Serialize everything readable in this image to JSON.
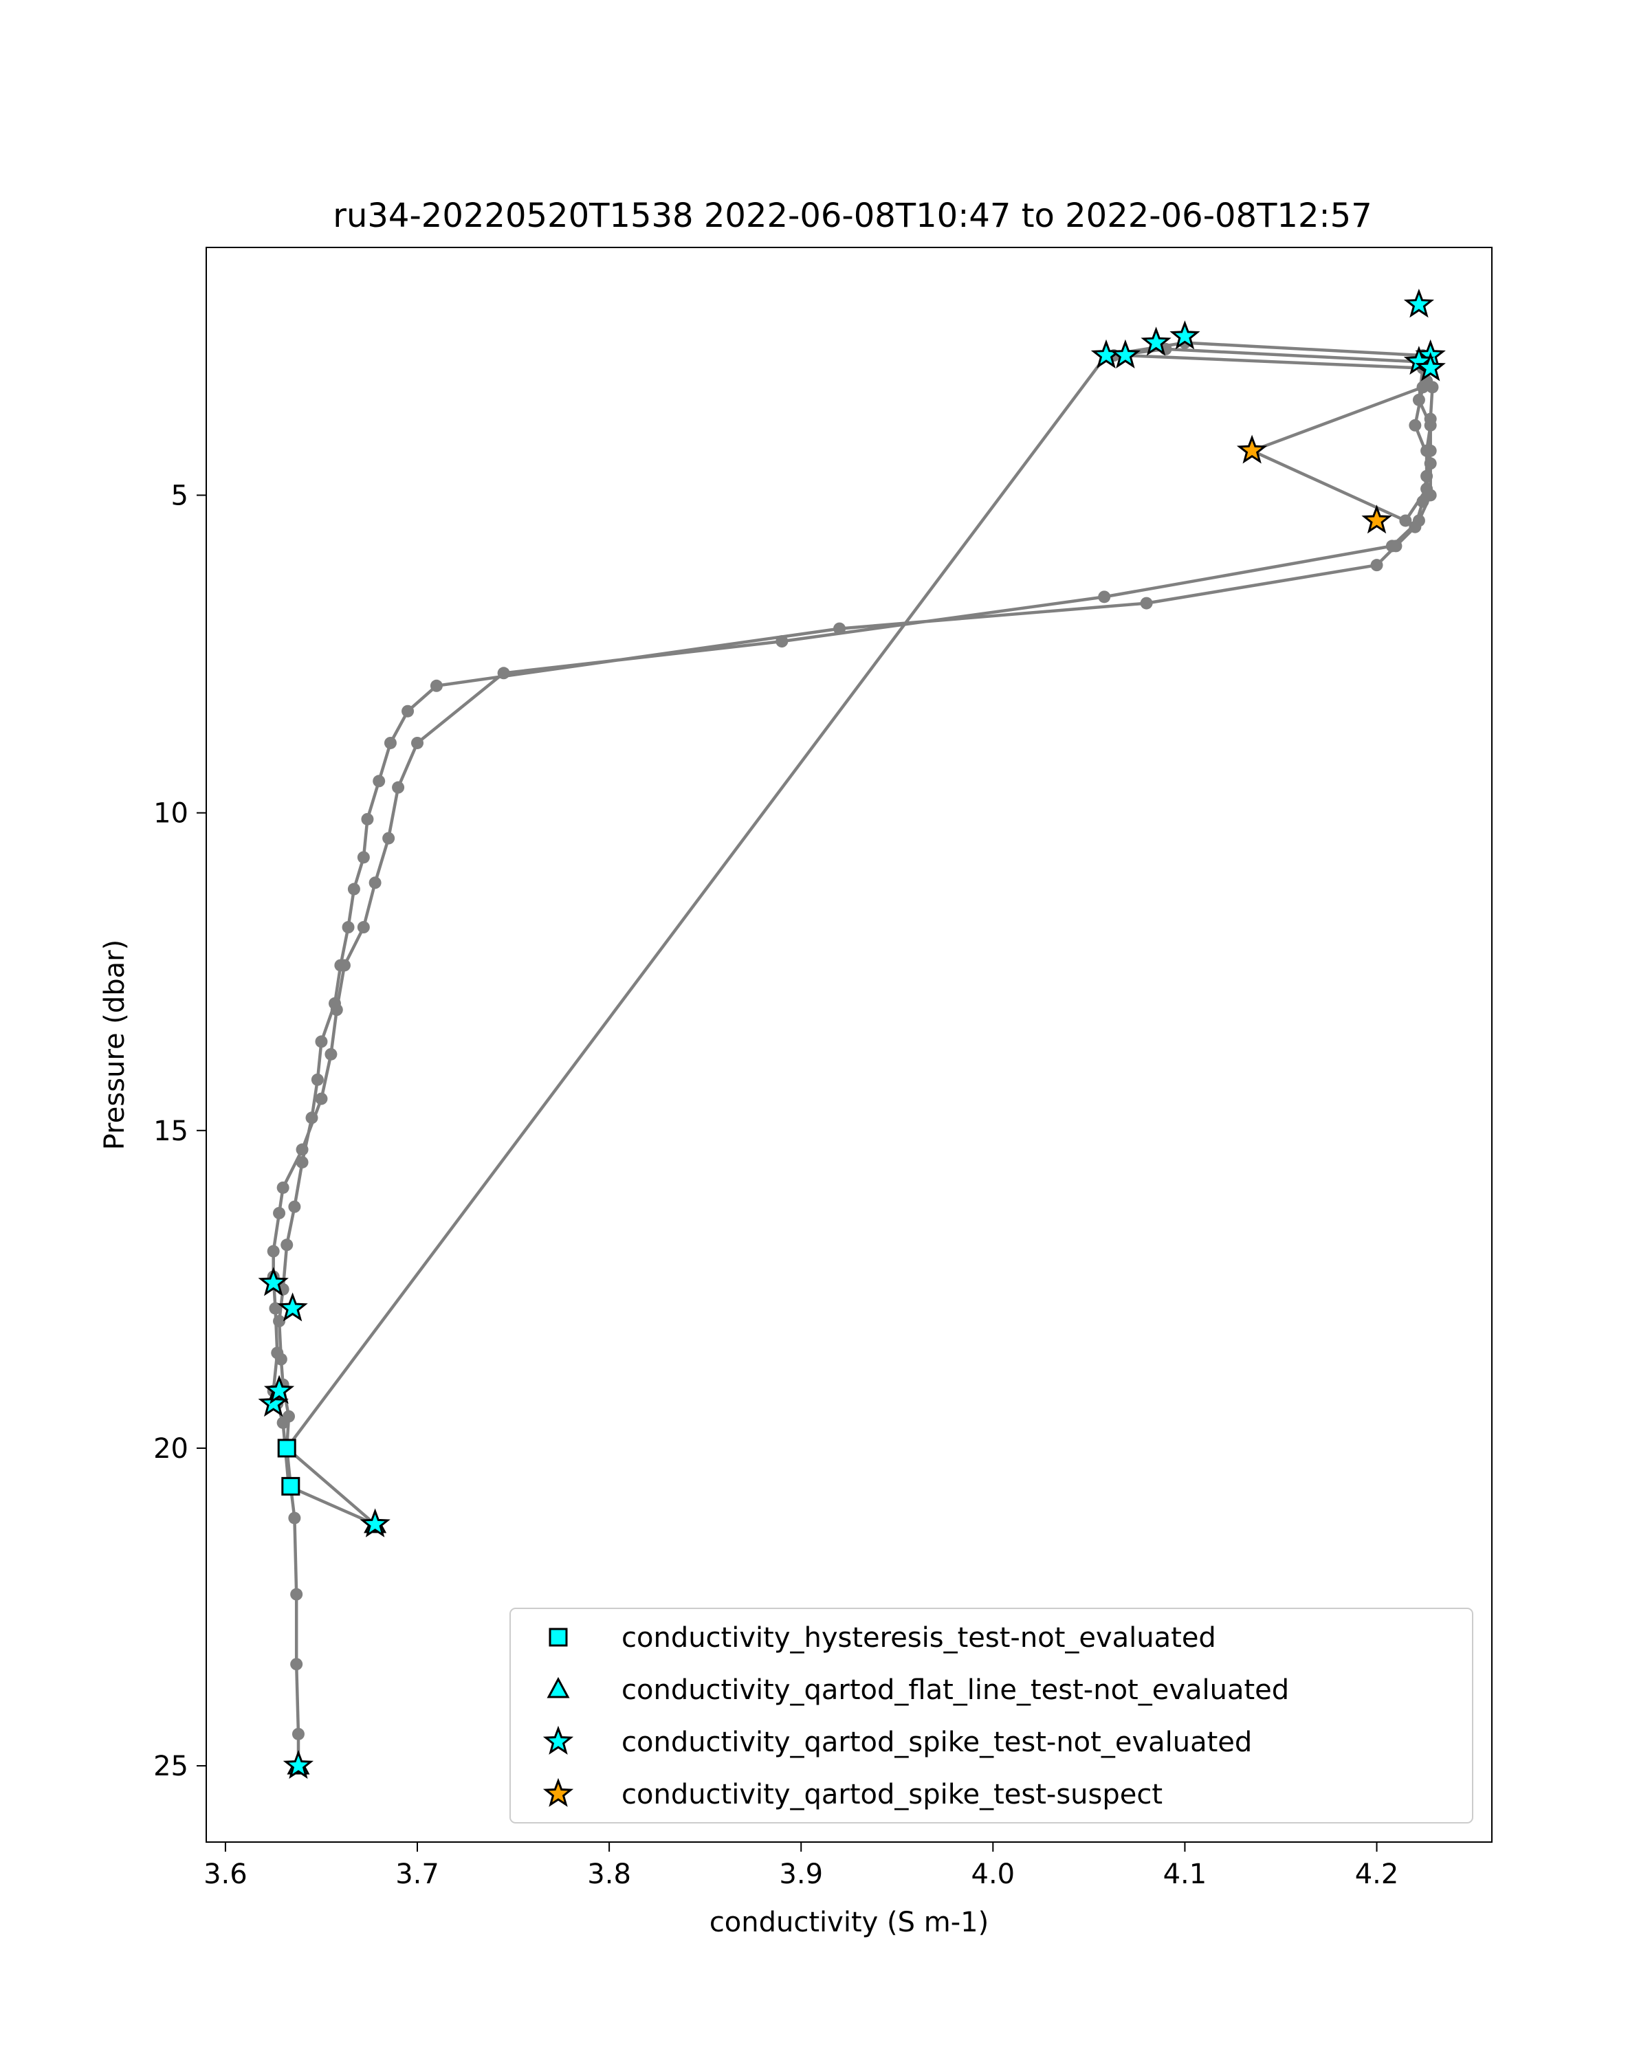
{
  "chart_data": {
    "type": "line",
    "title": "ru34-20220520T1538 2022-06-08T10:47 to 2022-06-08T12:57",
    "xlabel": "conductivity (S m-1)",
    "ylabel": "Pressure (dbar)",
    "xlim": [
      3.59,
      4.26
    ],
    "ylim": [
      26.2,
      1.1
    ],
    "y_inverted": true,
    "xticks": [
      3.6,
      3.7,
      3.8,
      3.9,
      4.0,
      4.1,
      4.2
    ],
    "xtick_labels": [
      "3.6",
      "3.7",
      "3.8",
      "3.9",
      "4.0",
      "4.1",
      "4.2"
    ],
    "yticks": [
      5,
      10,
      15,
      20,
      25
    ],
    "ytick_labels": [
      "5",
      "10",
      "15",
      "20",
      "25"
    ],
    "grid": false,
    "legend_position": "lower-right",
    "line_color": "#808080",
    "series": [
      {
        "x": [
          3.638,
          3.638,
          3.637,
          3.637,
          3.636,
          3.634,
          3.632,
          3.678,
          3.633,
          3.63,
          3.627,
          3.625,
          3.627,
          3.626,
          3.625,
          3.625,
          3.628,
          3.63,
          3.64,
          3.65,
          3.655,
          3.658,
          3.662,
          3.672,
          3.678,
          3.685,
          3.69,
          3.7,
          3.745,
          3.89,
          4.058,
          4.208,
          4.222,
          4.228,
          4.228,
          4.22,
          4.224,
          4.135,
          4.215,
          4.226,
          4.228,
          4.228,
          4.229,
          4.226,
          4.224,
          4.1,
          4.059,
          3.632,
          3.633,
          3.63,
          3.629,
          3.628,
          3.63,
          3.632,
          3.636,
          3.64,
          3.645,
          3.648,
          3.65,
          3.657,
          3.66,
          3.664,
          3.667,
          3.672,
          3.674,
          3.68,
          3.686,
          3.695,
          3.71,
          3.92,
          4.08,
          4.2,
          4.21,
          4.22,
          4.224,
          4.226,
          4.226,
          4.228,
          4.222,
          4.224,
          4.069,
          4.063,
          4.09,
          4.222
        ],
        "y": [
          25.0,
          24.5,
          23.4,
          22.3,
          21.1,
          20.6,
          20.0,
          21.2,
          20.6,
          19.6,
          19.3,
          19.1,
          18.5,
          17.8,
          17.3,
          16.9,
          16.3,
          15.9,
          15.3,
          14.5,
          13.8,
          13.1,
          12.4,
          11.8,
          11.1,
          10.4,
          9.6,
          8.9,
          7.8,
          7.3,
          6.6,
          5.8,
          5.4,
          5.0,
          4.5,
          3.9,
          3.3,
          4.3,
          5.4,
          4.9,
          4.3,
          3.8,
          3.3,
          3.2,
          2.8,
          2.6,
          2.8,
          20.0,
          19.5,
          19.0,
          18.6,
          18.0,
          17.5,
          16.8,
          16.2,
          15.5,
          14.8,
          14.2,
          13.6,
          13.0,
          12.4,
          11.8,
          11.2,
          10.7,
          10.1,
          9.5,
          8.9,
          8.4,
          8.0,
          7.1,
          6.7,
          6.1,
          5.8,
          5.5,
          5.1,
          4.7,
          4.3,
          3.9,
          3.5,
          3.0,
          2.8,
          2.8,
          2.7,
          2.9
        ],
        "flags": [
          {
            "x": 3.632,
            "y": 20.0,
            "flag": "conductivity_hysteresis_test-not_evaluated"
          },
          {
            "x": 3.634,
            "y": 20.6,
            "flag": "conductivity_hysteresis_test-not_evaluated"
          },
          {
            "x": 3.638,
            "y": 25.0,
            "flag": "conductivity_qartod_flat_line_test-not_evaluated"
          },
          {
            "x": 3.678,
            "y": 21.2,
            "flag": "conductivity_qartod_flat_line_test-not_evaluated"
          },
          {
            "x": 3.638,
            "y": 25.0,
            "flag": "conductivity_qartod_spike_test-not_evaluated"
          },
          {
            "x": 3.678,
            "y": 21.2,
            "flag": "conductivity_qartod_spike_test-not_evaluated"
          },
          {
            "x": 3.625,
            "y": 19.3,
            "flag": "conductivity_qartod_spike_test-not_evaluated"
          },
          {
            "x": 3.628,
            "y": 19.1,
            "flag": "conductivity_qartod_spike_test-not_evaluated"
          },
          {
            "x": 3.625,
            "y": 17.4,
            "flag": "conductivity_qartod_spike_test-not_evaluated"
          },
          {
            "x": 3.635,
            "y": 17.8,
            "flag": "conductivity_qartod_spike_test-not_evaluated"
          },
          {
            "x": 4.059,
            "y": 2.8,
            "flag": "conductivity_qartod_spike_test-not_evaluated"
          },
          {
            "x": 4.069,
            "y": 2.8,
            "flag": "conductivity_qartod_spike_test-not_evaluated"
          },
          {
            "x": 4.085,
            "y": 2.6,
            "flag": "conductivity_qartod_spike_test-not_evaluated"
          },
          {
            "x": 4.1,
            "y": 2.5,
            "flag": "conductivity_qartod_spike_test-not_evaluated"
          },
          {
            "x": 4.222,
            "y": 2.0,
            "flag": "conductivity_qartod_spike_test-not_evaluated"
          },
          {
            "x": 4.228,
            "y": 2.8,
            "flag": "conductivity_qartod_spike_test-not_evaluated"
          },
          {
            "x": 4.222,
            "y": 2.9,
            "flag": "conductivity_qartod_spike_test-not_evaluated"
          },
          {
            "x": 4.228,
            "y": 3.0,
            "flag": "conductivity_qartod_spike_test-not_evaluated"
          },
          {
            "x": 4.135,
            "y": 4.3,
            "flag": "conductivity_qartod_spike_test-suspect"
          },
          {
            "x": 4.2,
            "y": 5.4,
            "flag": "conductivity_qartod_spike_test-suspect"
          }
        ]
      }
    ],
    "legend": [
      {
        "label": "conductivity_hysteresis_test-not_evaluated",
        "marker": "square",
        "color": "#00ffff"
      },
      {
        "label": "conductivity_qartod_flat_line_test-not_evaluated",
        "marker": "triangle",
        "color": "#00ffff"
      },
      {
        "label": "conductivity_qartod_spike_test-not_evaluated",
        "marker": "star",
        "color": "#00ffff"
      },
      {
        "label": "conductivity_qartod_spike_test-suspect",
        "marker": "star",
        "color": "#ffa500"
      }
    ]
  }
}
